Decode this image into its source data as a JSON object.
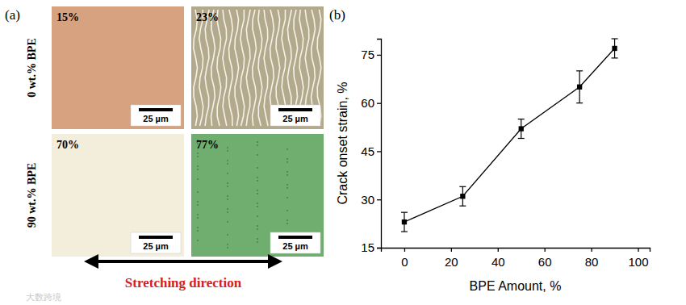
{
  "panel_a": {
    "label": "(a)",
    "rows": [
      {
        "label": "0 wt.% BPE",
        "images": [
          {
            "strain_label": "15%",
            "scale_bar": "25 µm"
          },
          {
            "strain_label": "23%",
            "scale_bar": "25 µm"
          }
        ]
      },
      {
        "label": "90 wt.% BPE",
        "images": [
          {
            "strain_label": "70%",
            "scale_bar": "25 µm"
          },
          {
            "strain_label": "77%",
            "scale_bar": "25 µm"
          }
        ]
      }
    ],
    "arrow_label": "Stretching direction"
  },
  "watermark": "大数跨境",
  "chart_data": {
    "type": "line",
    "panel_label": "(b)",
    "x_label": "BPE Amount, %",
    "y_label": "Crack onset strain, %",
    "x": [
      0,
      25,
      50,
      75,
      90
    ],
    "values": [
      23,
      31,
      52,
      65,
      77
    ],
    "errors": [
      3,
      3,
      3,
      5,
      3
    ],
    "color": "#000000",
    "marker": "square",
    "line_style": "solid",
    "xlim": [
      -10,
      105
    ],
    "xticks": [
      0,
      20,
      40,
      60,
      80,
      100
    ],
    "ylim": [
      15,
      80
    ],
    "yticks": [
      15,
      30,
      45,
      60,
      75
    ],
    "grid": false
  }
}
